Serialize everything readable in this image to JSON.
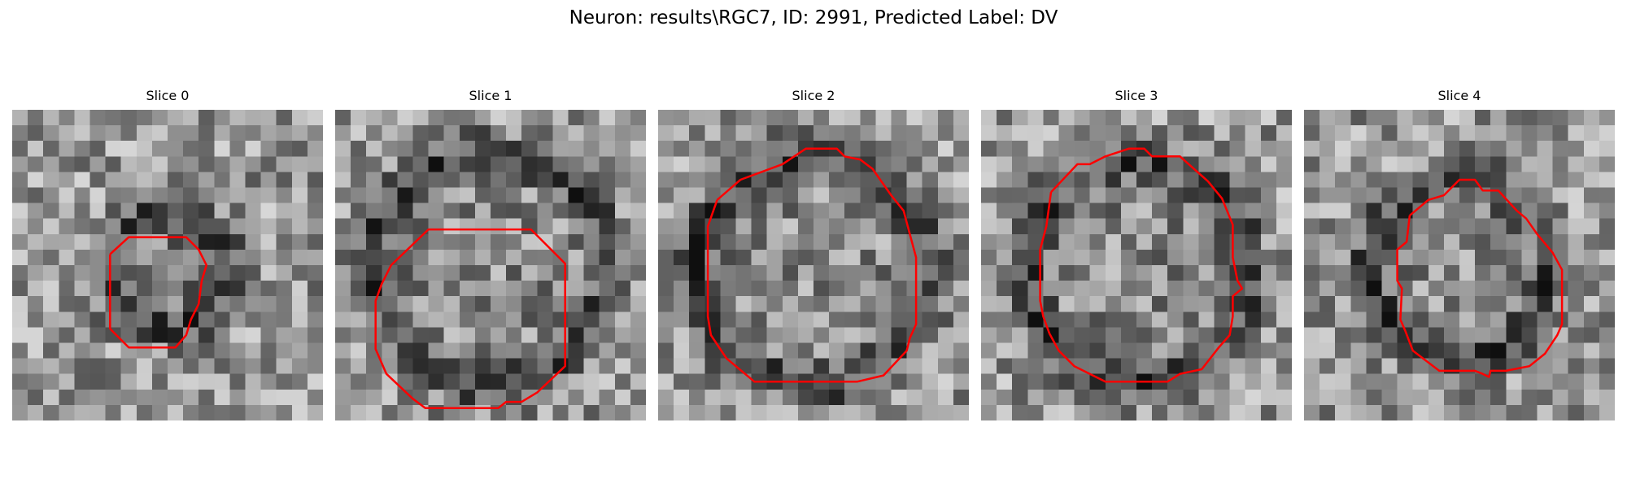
{
  "figure": {
    "title": "Neuron: results\\RGC7, ID: 2991, Predicted Label: DV",
    "contour_color": "#ff0000"
  },
  "panels": [
    {
      "title": "Slice 0",
      "contour": [
        [
          6.3,
          9.3
        ],
        [
          7.5,
          8.2
        ],
        [
          11.2,
          8.2
        ],
        [
          12.0,
          9.0
        ],
        [
          12.5,
          10.0
        ],
        [
          12.2,
          11.0
        ],
        [
          12.0,
          12.5
        ],
        [
          11.5,
          13.5
        ],
        [
          11.2,
          14.5
        ],
        [
          10.5,
          15.3
        ],
        [
          7.5,
          15.3
        ],
        [
          6.3,
          14.1
        ],
        [
          6.3,
          9.3
        ]
      ]
    },
    {
      "title": "Slice 1",
      "contour": [
        [
          3.6,
          10.0
        ],
        [
          6.0,
          7.7
        ],
        [
          12.6,
          7.7
        ],
        [
          14.8,
          9.9
        ],
        [
          14.8,
          16.5
        ],
        [
          13.0,
          18.2
        ],
        [
          12.0,
          18.8
        ],
        [
          11.0,
          18.8
        ],
        [
          10.5,
          19.2
        ],
        [
          5.8,
          19.2
        ],
        [
          5.0,
          18.6
        ],
        [
          3.3,
          17.0
        ],
        [
          2.6,
          15.4
        ],
        [
          2.6,
          12.3
        ],
        [
          3.0,
          11.2
        ],
        [
          3.6,
          10.0
        ]
      ]
    },
    {
      "title": "Slice 2",
      "contour": [
        [
          3.8,
          5.8
        ],
        [
          5.3,
          4.5
        ],
        [
          8.0,
          3.5
        ],
        [
          9.5,
          2.5
        ],
        [
          11.5,
          2.5
        ],
        [
          12.0,
          3.0
        ],
        [
          13.0,
          3.2
        ],
        [
          13.8,
          3.8
        ],
        [
          15.0,
          5.5
        ],
        [
          15.8,
          6.5
        ],
        [
          16.2,
          8.0
        ],
        [
          16.6,
          9.5
        ],
        [
          16.6,
          13.8
        ],
        [
          16.2,
          14.7
        ],
        [
          16.0,
          15.5
        ],
        [
          14.5,
          17.1
        ],
        [
          12.8,
          17.5
        ],
        [
          6.2,
          17.5
        ],
        [
          4.4,
          16.0
        ],
        [
          3.4,
          14.5
        ],
        [
          3.2,
          13.3
        ],
        [
          3.2,
          7.5
        ],
        [
          3.8,
          5.8
        ]
      ]
    },
    {
      "title": "Slice 3",
      "contour": [
        [
          4.5,
          5.3
        ],
        [
          6.2,
          3.5
        ],
        [
          7.0,
          3.5
        ],
        [
          8.0,
          3.0
        ],
        [
          9.5,
          2.5
        ],
        [
          10.5,
          2.5
        ],
        [
          11.0,
          3.0
        ],
        [
          12.8,
          3.0
        ],
        [
          14.6,
          4.6
        ],
        [
          15.5,
          5.7
        ],
        [
          16.2,
          7.4
        ],
        [
          16.2,
          9.5
        ],
        [
          16.5,
          11.0
        ],
        [
          16.8,
          11.5
        ],
        [
          16.2,
          12.0
        ],
        [
          16.2,
          13.3
        ],
        [
          16.0,
          14.5
        ],
        [
          15.3,
          15.3
        ],
        [
          14.2,
          16.7
        ],
        [
          12.8,
          17.0
        ],
        [
          12.0,
          17.5
        ],
        [
          8.0,
          17.5
        ],
        [
          6.0,
          16.5
        ],
        [
          5.0,
          15.5
        ],
        [
          4.4,
          14.4
        ],
        [
          4.0,
          13.3
        ],
        [
          3.8,
          12.3
        ],
        [
          3.8,
          9.0
        ],
        [
          4.2,
          7.5
        ],
        [
          4.5,
          5.3
        ]
      ]
    },
    {
      "title": "Slice 4",
      "contour": [
        [
          6.8,
          6.8
        ],
        [
          8.0,
          5.8
        ],
        [
          9.0,
          5.5
        ],
        [
          10.0,
          4.5
        ],
        [
          11.0,
          4.5
        ],
        [
          11.5,
          5.2
        ],
        [
          12.5,
          5.2
        ],
        [
          13.7,
          6.5
        ],
        [
          14.3,
          7.0
        ],
        [
          15.0,
          8.0
        ],
        [
          16.0,
          9.2
        ],
        [
          16.6,
          10.3
        ],
        [
          16.6,
          13.8
        ],
        [
          16.3,
          14.5
        ],
        [
          15.5,
          15.7
        ],
        [
          14.5,
          16.5
        ],
        [
          13.0,
          16.8
        ],
        [
          12.0,
          16.8
        ],
        [
          11.9,
          17.2
        ],
        [
          11.5,
          17.0
        ],
        [
          11.0,
          16.8
        ],
        [
          8.7,
          16.8
        ],
        [
          7.0,
          15.5
        ],
        [
          6.5,
          14.2
        ],
        [
          6.2,
          13.5
        ],
        [
          6.3,
          11.5
        ],
        [
          6.0,
          11.0
        ],
        [
          6.0,
          9.0
        ],
        [
          6.6,
          8.5
        ],
        [
          6.8,
          6.8
        ]
      ]
    }
  ]
}
